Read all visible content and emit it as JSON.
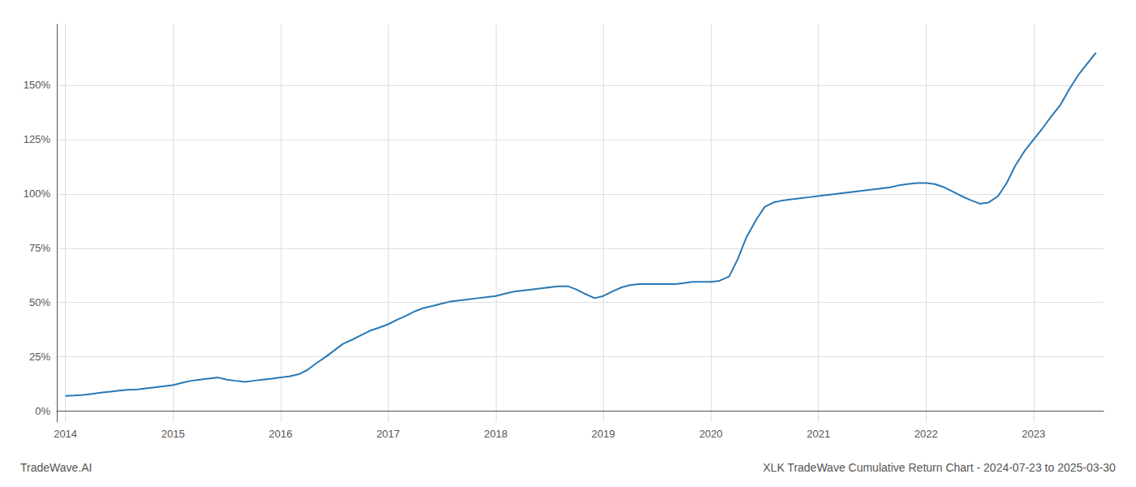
{
  "chart_data": {
    "type": "line",
    "title": "XLK TradeWave Cumulative Return Chart - 2024-07-23 to 2025-03-30",
    "annotations": [
      "TradeWave.AI"
    ],
    "color": "#2878b5",
    "x": [
      2014.0,
      2014.08,
      2014.17,
      2014.25,
      2014.33,
      2014.42,
      2014.5,
      2014.58,
      2014.67,
      2014.75,
      2014.83,
      2014.92,
      2015.0,
      2015.08,
      2015.17,
      2015.25,
      2015.33,
      2015.42,
      2015.5,
      2015.58,
      2015.67,
      2015.75,
      2015.83,
      2015.92,
      2016.0,
      2016.08,
      2016.17,
      2016.25,
      2016.33,
      2016.42,
      2016.5,
      2016.58,
      2016.67,
      2016.75,
      2016.83,
      2016.92,
      2017.0,
      2017.08,
      2017.17,
      2017.25,
      2017.33,
      2017.42,
      2017.5,
      2017.58,
      2017.67,
      2017.75,
      2017.83,
      2017.92,
      2018.0,
      2018.08,
      2018.17,
      2018.25,
      2018.33,
      2018.42,
      2018.5,
      2018.58,
      2018.67,
      2018.75,
      2018.83,
      2018.92,
      2019.0,
      2019.08,
      2019.17,
      2019.25,
      2019.33,
      2019.42,
      2019.5,
      2019.58,
      2019.67,
      2019.75,
      2019.83,
      2019.92,
      2020.0,
      2020.08,
      2020.17,
      2020.25,
      2020.33,
      2020.42,
      2020.5,
      2020.58,
      2020.67,
      2020.75,
      2020.83,
      2020.92,
      2021.0,
      2021.08,
      2021.17,
      2021.25,
      2021.33,
      2021.42,
      2021.5,
      2021.58,
      2021.67,
      2021.75,
      2021.83,
      2021.92,
      2022.0,
      2022.08,
      2022.17,
      2022.25,
      2022.33,
      2022.42,
      2022.5,
      2022.58,
      2022.67,
      2022.75,
      2022.83,
      2022.92,
      2023.0,
      2023.08,
      2023.17,
      2023.25,
      2023.33,
      2023.42,
      2023.5,
      2023.58
    ],
    "values": [
      7.0,
      7.2,
      7.5,
      8.0,
      8.5,
      9.0,
      9.5,
      9.8,
      10.0,
      10.5,
      11.0,
      11.5,
      12.0,
      13.0,
      14.0,
      14.5,
      15.0,
      15.5,
      14.5,
      14.0,
      13.5,
      14.0,
      14.5,
      15.0,
      15.5,
      16.0,
      17.0,
      19.0,
      22.0,
      25.0,
      28.0,
      31.0,
      33.0,
      35.0,
      37.0,
      38.5,
      40.0,
      42.0,
      44.0,
      46.0,
      47.5,
      48.5,
      49.5,
      50.5,
      51.0,
      51.5,
      52.0,
      52.5,
      53.0,
      54.0,
      55.0,
      55.5,
      56.0,
      56.5,
      57.0,
      57.5,
      57.5,
      56.0,
      54.0,
      52.0,
      53.0,
      55.0,
      57.0,
      58.0,
      58.5,
      58.5,
      58.5,
      58.5,
      58.5,
      59.0,
      59.5,
      59.5,
      59.5,
      60.0,
      62.0,
      70.0,
      80.0,
      88.0,
      94.0,
      96.0,
      97.0,
      97.5,
      98.0,
      98.5,
      99.0,
      99.5,
      100.0,
      100.5,
      101.0,
      101.5,
      102.0,
      102.5,
      103.0,
      104.0,
      104.5,
      105.0,
      105.0,
      104.5,
      103.0,
      101.0,
      99.0,
      97.0,
      95.5,
      96.0,
      99.0,
      105.0,
      113.0,
      120.0,
      125.0,
      130.0,
      136.0,
      141.0,
      148.0,
      155.0,
      160.0,
      165.0
    ],
    "xlim": [
      2013.92,
      2023.65
    ],
    "xticks": [
      2014,
      2015,
      2016,
      2017,
      2018,
      2019,
      2020,
      2021,
      2022,
      2023
    ],
    "ylim": [
      -5,
      178
    ],
    "yticks": [
      {
        "value": 0,
        "label": "0%"
      },
      {
        "value": 25,
        "label": "25%"
      },
      {
        "value": 50,
        "label": "50%"
      },
      {
        "value": 75,
        "label": "75%"
      },
      {
        "value": 100,
        "label": "100%"
      },
      {
        "value": 125,
        "label": "125%"
      },
      {
        "value": 150,
        "label": "150%"
      }
    ],
    "grid": true
  }
}
